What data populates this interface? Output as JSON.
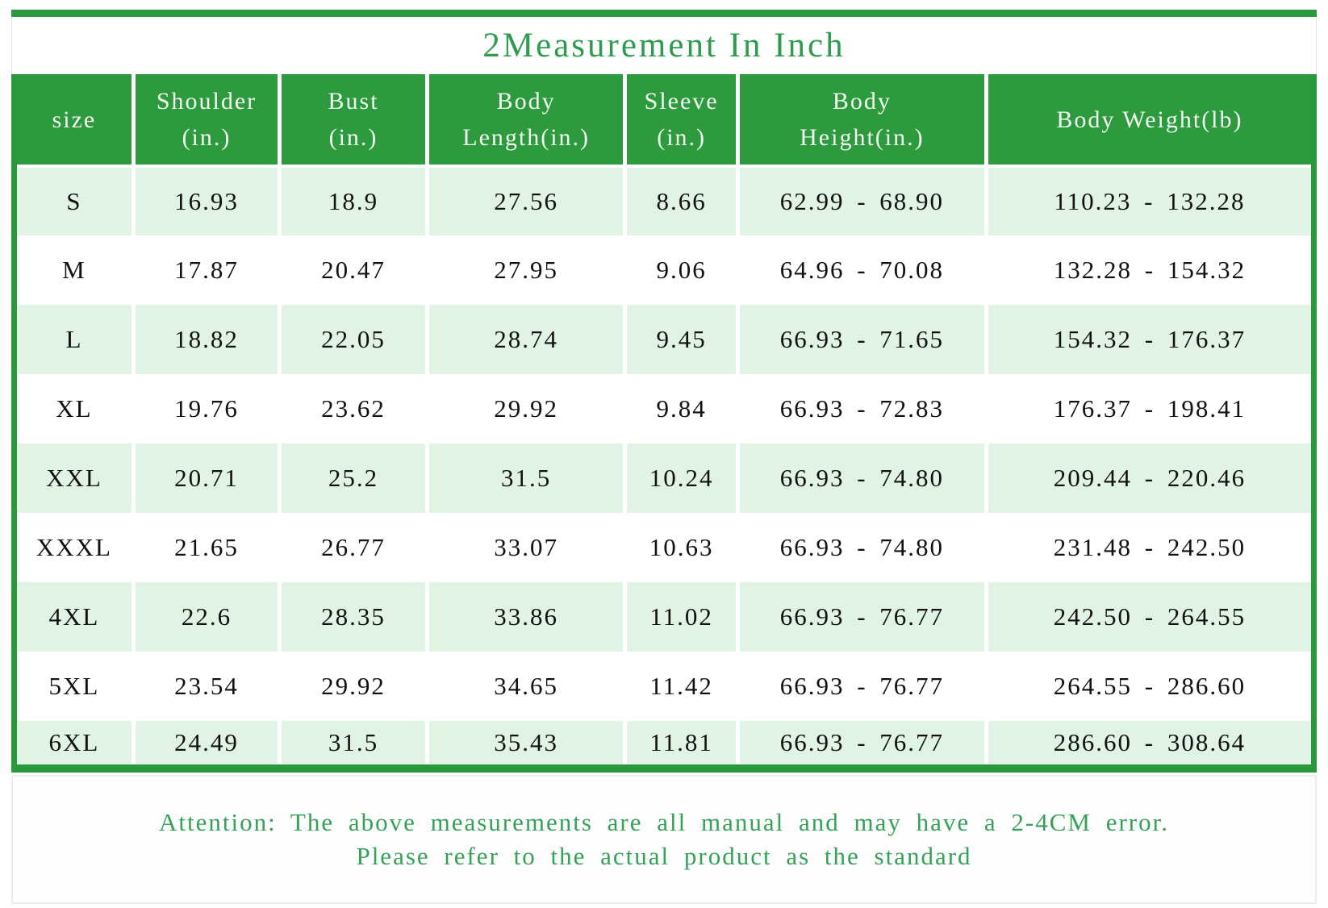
{
  "title": "2Measurement In Inch",
  "table": {
    "columns": [
      {
        "id": "size",
        "line1": "size",
        "line2": ""
      },
      {
        "id": "shoulder",
        "line1": "Shoulder",
        "line2": "(in.)"
      },
      {
        "id": "bust",
        "line1": "Bust",
        "line2": "(in.)"
      },
      {
        "id": "body_length",
        "line1": "Body",
        "line2": "Length(in.)"
      },
      {
        "id": "sleeve",
        "line1": "Sleeve",
        "line2": "(in.)"
      },
      {
        "id": "body_height",
        "line1": "Body",
        "line2": "Height(in.)"
      },
      {
        "id": "body_weight",
        "line1": "Body Weight(lb)",
        "line2": ""
      }
    ],
    "rows": [
      {
        "size": "S",
        "shoulder": "16.93",
        "bust": "18.9",
        "body_length": "27.56",
        "sleeve": "8.66",
        "body_height": "62.99 - 68.90",
        "body_weight": "110.23 - 132.28"
      },
      {
        "size": "M",
        "shoulder": "17.87",
        "bust": "20.47",
        "body_length": "27.95",
        "sleeve": "9.06",
        "body_height": "64.96 - 70.08",
        "body_weight": "132.28 - 154.32"
      },
      {
        "size": "L",
        "shoulder": "18.82",
        "bust": "22.05",
        "body_length": "28.74",
        "sleeve": "9.45",
        "body_height": "66.93 - 71.65",
        "body_weight": "154.32 - 176.37"
      },
      {
        "size": "XL",
        "shoulder": "19.76",
        "bust": "23.62",
        "body_length": "29.92",
        "sleeve": "9.84",
        "body_height": "66.93 - 72.83",
        "body_weight": "176.37 - 198.41"
      },
      {
        "size": "XXL",
        "shoulder": "20.71",
        "bust": "25.2",
        "body_length": "31.5",
        "sleeve": "10.24",
        "body_height": "66.93 - 74.80",
        "body_weight": "209.44 - 220.46"
      },
      {
        "size": "XXXL",
        "shoulder": "21.65",
        "bust": "26.77",
        "body_length": "33.07",
        "sleeve": "10.63",
        "body_height": "66.93 - 74.80",
        "body_weight": "231.48 - 242.50"
      },
      {
        "size": "4XL",
        "shoulder": "22.6",
        "bust": "28.35",
        "body_length": "33.86",
        "sleeve": "11.02",
        "body_height": "66.93 - 76.77",
        "body_weight": "242.50 - 264.55"
      },
      {
        "size": "5XL",
        "shoulder": "23.54",
        "bust": "29.92",
        "body_length": "34.65",
        "sleeve": "11.42",
        "body_height": "66.93 - 76.77",
        "body_weight": "264.55 - 286.60"
      },
      {
        "size": "6XL",
        "shoulder": "24.49",
        "bust": "31.5",
        "body_length": "35.43",
        "sleeve": "11.81",
        "body_height": "66.93 - 76.77",
        "body_weight": "286.60 - 308.64"
      }
    ]
  },
  "footer": {
    "line1": "Attention: The above measurements are all manual and may have a 2-4CM error.",
    "line2": "Please refer to the actual product as the standard"
  },
  "colors": {
    "header_green": "#2e9a3e",
    "border_green": "#2a983c",
    "row_light_green": "#e1f3e4",
    "title_green": "#2f9b4e",
    "footer_green": "#35a159",
    "cell_text": "#111111"
  }
}
